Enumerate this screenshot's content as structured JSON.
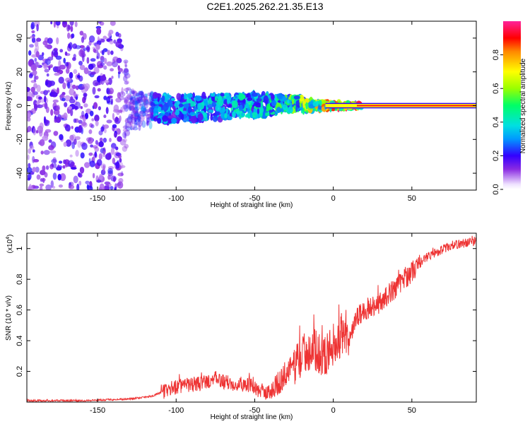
{
  "title": "C2E1.2025.262.21.35.E13",
  "chart_data": [
    {
      "type": "heatmap",
      "title": "C2E1.2025.262.21.35.E13",
      "xlabel": "Height of straight line (km)",
      "ylabel": "Frequency (Hz)",
      "xlim": [
        -195,
        91
      ],
      "ylim": [
        -50,
        50
      ],
      "xticks": [
        -150,
        -100,
        -50,
        0,
        50
      ],
      "yticks": [
        -40,
        -20,
        0,
        20,
        40
      ],
      "colorbar": {
        "label": "Normalized spectral amplitude",
        "range": [
          0,
          1
        ],
        "ticks": [
          0.0,
          0.2,
          0.4,
          0.6,
          0.8
        ],
        "tick_labels": [
          "0.0",
          "0.2",
          "0.4",
          "0.6",
          "0.8"
        ]
      },
      "description_points": [
        {
          "x": -195,
          "spread_hz": 50,
          "amp": 0.15
        },
        {
          "x": -135,
          "spread_hz": 50,
          "amp": 0.12
        },
        {
          "x": -130,
          "spread_hz": 12,
          "amp": 0.2
        },
        {
          "x": -110,
          "spread_hz": 8,
          "amp": 0.3
        },
        {
          "x": -50,
          "spread_hz": 7,
          "amp": 0.38
        },
        {
          "x": -25,
          "spread_hz": 4,
          "amp": 0.5
        },
        {
          "x": 0,
          "spread_hz": 2,
          "amp": 0.75
        },
        {
          "x": 15,
          "spread_hz": 1,
          "amp": 0.85
        },
        {
          "x": 91,
          "spread_hz": 1,
          "amp": 0.95
        }
      ]
    },
    {
      "type": "line",
      "xlabel": "Height of straight line (km)",
      "ylabel": "SNR (10 * v/v)",
      "y_scale_label": "(x10",
      "y_scale_exp": "4",
      "xlim": [
        -195,
        91
      ],
      "ylim": [
        0,
        1.1
      ],
      "xticks": [
        -150,
        -100,
        -50,
        0,
        50
      ],
      "yticks": [
        0.2,
        0.4,
        0.6,
        0.8,
        1.0
      ],
      "ytick_labels": [
        "0.2",
        "0.4",
        "0.6",
        "0.8",
        "1"
      ],
      "series": [
        {
          "name": "SNR",
          "color": "#ee3333",
          "x": [
            -195,
            -160,
            -130,
            -115,
            -108,
            -100,
            -85,
            -75,
            -65,
            -55,
            -50,
            -45,
            -40,
            -35,
            -30,
            -25,
            -20,
            -15,
            -10,
            -5,
            0,
            5,
            10,
            15,
            20,
            30,
            40,
            50,
            60,
            75,
            91
          ],
          "y": [
            0.01,
            0.01,
            0.02,
            0.04,
            0.07,
            0.1,
            0.12,
            0.15,
            0.12,
            0.12,
            0.09,
            0.06,
            0.07,
            0.12,
            0.18,
            0.25,
            0.3,
            0.35,
            0.33,
            0.3,
            0.38,
            0.42,
            0.4,
            0.55,
            0.6,
            0.65,
            0.75,
            0.85,
            0.95,
            1.02,
            1.05
          ]
        }
      ]
    }
  ]
}
